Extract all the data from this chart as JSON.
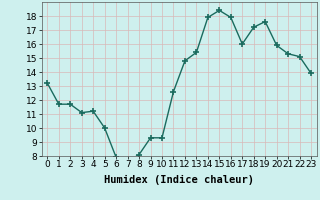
{
  "x": [
    0,
    1,
    2,
    3,
    4,
    5,
    6,
    7,
    8,
    9,
    10,
    11,
    12,
    13,
    14,
    15,
    16,
    17,
    18,
    19,
    20,
    21,
    22,
    23
  ],
  "y": [
    13.2,
    11.7,
    11.7,
    11.1,
    11.2,
    10.0,
    7.9,
    7.6,
    8.1,
    9.3,
    9.3,
    12.6,
    14.8,
    15.4,
    17.9,
    18.4,
    17.9,
    16.0,
    17.2,
    17.6,
    15.9,
    15.3,
    15.1,
    13.9
  ],
  "xlabel": "Humidex (Indice chaleur)",
  "line_color": "#1a6b5e",
  "marker_color": "#1a6b5e",
  "bg_color": "#cef0ee",
  "grid_color": "#d9b8b8",
  "ylim": [
    8,
    19
  ],
  "xlim": [
    -0.5,
    23.5
  ],
  "yticks": [
    8,
    9,
    10,
    11,
    12,
    13,
    14,
    15,
    16,
    17,
    18
  ],
  "xticks": [
    0,
    1,
    2,
    3,
    4,
    5,
    6,
    7,
    8,
    9,
    10,
    11,
    12,
    13,
    14,
    15,
    16,
    17,
    18,
    19,
    20,
    21,
    22,
    23
  ],
  "xtick_labels": [
    "0",
    "1",
    "2",
    "3",
    "4",
    "5",
    "6",
    "7",
    "8",
    "9",
    "10",
    "11",
    "12",
    "13",
    "14",
    "15",
    "16",
    "17",
    "18",
    "19",
    "20",
    "21",
    "22",
    "23"
  ],
  "marker_size": 4,
  "line_width": 1.0,
  "xlabel_fontsize": 7.5,
  "tick_fontsize": 6.5
}
